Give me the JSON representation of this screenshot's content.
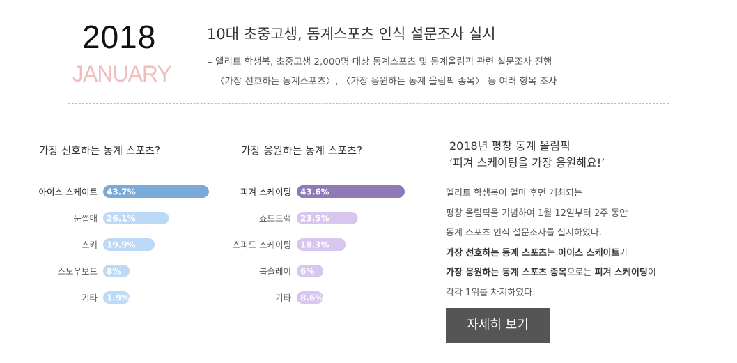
{
  "header": {
    "year": "2018",
    "month": "JANUARY",
    "title": "10대 초중고생, 동계스포츠 인식 설문조사 실시",
    "lines": [
      "– 엘리트 학생복, 초중고생 2,000명 대상 동계스포츠 및 동계올림픽 관련 설문조사 진행",
      "– 〈가장 선호하는 동계스포츠〉, 〈가장 응원하는 동계 올림픽 종목〉 등 여러 항목 조사"
    ]
  },
  "chart_data": [
    {
      "type": "bar",
      "orientation": "horizontal",
      "title": "가장 선호하는 동계 스포츠?",
      "categories": [
        "아이스 스케이트",
        "눈썰매",
        "스키",
        "스노우보드",
        "기타"
      ],
      "values": [
        43.7,
        26.1,
        19.9,
        8,
        1.9
      ],
      "value_labels": [
        "43.7%",
        "26.1%",
        "19.9%",
        "8%",
        "1.9%"
      ],
      "colors": {
        "highlight": "#7aaad8",
        "base": "#bcdaf5"
      }
    },
    {
      "type": "bar",
      "orientation": "horizontal",
      "title": "가장 응원하는 동계 스포츠?",
      "categories": [
        "피겨 스케이팅",
        "쇼트트랙",
        "스피드 스케이팅",
        "봅슬레이",
        "기타"
      ],
      "values": [
        43.6,
        23.5,
        18.3,
        6,
        8.6
      ],
      "value_labels": [
        "43.6%",
        "23.5%",
        "18.3%",
        "6%",
        "8.6%"
      ],
      "colors": {
        "highlight": "#9079b6",
        "base": "#d9c6ee"
      }
    }
  ],
  "side": {
    "title_line1": "2018년 평창 동계 올림픽",
    "title_line2": "‘피겨 스케이팅을 가장 응원해요!’",
    "text": [
      [
        {
          "t": "엘리트 학생복이 얼마 후면 개최되는"
        }
      ],
      [
        {
          "t": "평창 올림픽을 기념하여 1월 12일부터 2주 동안"
        }
      ],
      [
        {
          "t": "동계 스포츠 인식 설문조사를 실시하였다."
        }
      ],
      [
        {
          "t": "가장 선호하는 동계 스포츠",
          "b": true
        },
        {
          "t": "는 "
        },
        {
          "t": "아이스 스케이트",
          "b": true
        },
        {
          "t": "가"
        }
      ],
      [
        {
          "t": "가장 응원하는 동계 스포츠 종목",
          "b": true
        },
        {
          "t": "으로는 "
        },
        {
          "t": "피겨 스케이팅",
          "b": true
        },
        {
          "t": "이"
        }
      ],
      [
        {
          "t": "각각 1위를 차지하였다."
        }
      ]
    ],
    "button_label": "자세히 보기"
  }
}
